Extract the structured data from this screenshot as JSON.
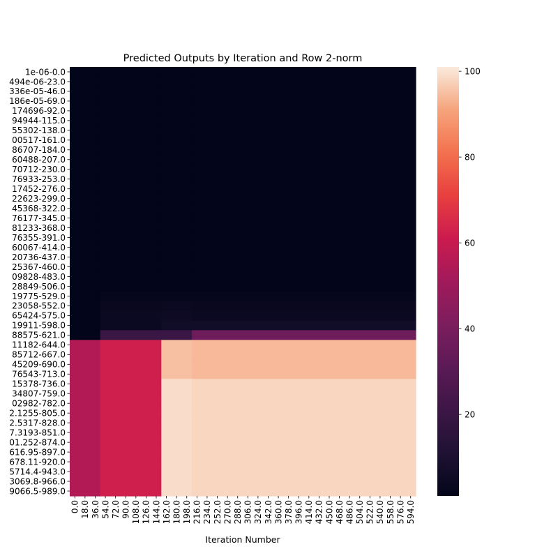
{
  "chart_data": {
    "type": "heatmap",
    "title": "Predicted Outputs by Iteration and Row 2-norm",
    "xlabel": "Iteration Number",
    "ylabel": "",
    "x_tick_labels": [
      "0.0",
      "18.0",
      "36.0",
      "54.0",
      "72.0",
      "90.0",
      "108.0",
      "126.0",
      "144.0",
      "162.0",
      "180.0",
      "198.0",
      "216.0",
      "234.0",
      "252.0",
      "270.0",
      "288.0",
      "306.0",
      "324.0",
      "342.0",
      "360.0",
      "378.0",
      "396.0",
      "414.0",
      "432.0",
      "450.0",
      "468.0",
      "486.0",
      "504.0",
      "522.0",
      "540.0",
      "558.0",
      "576.0",
      "594.0"
    ],
    "y_tick_labels": [
      "1e-06-0.0",
      "494e-06-23.0",
      "336e-05-46.0",
      "186e-05-69.0",
      "174696-92.0",
      "94944-115.0",
      "55302-138.0",
      "00517-161.0",
      "86707-184.0",
      "60488-207.0",
      "70712-230.0",
      "76933-253.0",
      "17452-276.0",
      "22623-299.0",
      "45368-322.0",
      "76177-345.0",
      "81233-368.0",
      "76355-391.0",
      "60067-414.0",
      "20736-437.0",
      "25367-460.0",
      "09828-483.0",
      "28849-506.0",
      "19775-529.0",
      "23058-552.0",
      "65424-575.0",
      "19911-598.0",
      "88575-621.0",
      "11182-644.0",
      "85712-667.0",
      "45209-690.0",
      "76543-713.0",
      "15378-736.0",
      "34807-759.0",
      "02982-782.0",
      "2.1255-805.0",
      "2.5317-828.0",
      "7.3193-851.0",
      "01.252-874.0",
      "616.95-897.0",
      "678.11-920.0",
      "5714.4-943.0",
      "3069.8-966.0",
      "9066.5-989.0"
    ],
    "column_segments": [
      {
        "iterations": "0.0-36.0",
        "columns": 3
      },
      {
        "iterations": "54.0-144.0",
        "columns": 6
      },
      {
        "iterations": "162.0-198.0",
        "columns": 3
      },
      {
        "iterations": "216.0-594.0",
        "columns": 22
      }
    ],
    "row_values": [
      [
        1,
        1,
        1,
        1
      ],
      [
        1,
        1,
        1,
        1
      ],
      [
        1,
        1,
        1,
        1
      ],
      [
        1,
        1,
        1,
        1
      ],
      [
        1,
        1,
        1,
        1
      ],
      [
        1,
        1,
        1,
        1
      ],
      [
        1,
        1,
        1,
        1
      ],
      [
        1,
        1,
        1,
        1
      ],
      [
        1,
        1,
        1,
        1
      ],
      [
        1,
        1,
        1,
        1
      ],
      [
        1,
        1,
        1,
        1
      ],
      [
        1,
        1,
        1,
        1
      ],
      [
        1,
        1,
        1,
        1
      ],
      [
        1,
        1,
        1,
        1
      ],
      [
        1,
        1,
        1,
        1
      ],
      [
        1,
        1,
        1,
        1
      ],
      [
        1,
        1,
        1,
        1
      ],
      [
        1,
        1,
        1,
        1
      ],
      [
        1,
        1,
        1,
        1
      ],
      [
        1,
        1,
        1,
        1
      ],
      [
        1,
        1,
        1,
        1
      ],
      [
        1,
        1,
        1,
        1
      ],
      [
        1,
        1,
        1,
        1
      ],
      [
        1,
        2,
        2,
        2
      ],
      [
        1,
        3,
        4,
        3
      ],
      [
        1,
        4,
        5,
        4
      ],
      [
        1,
        4,
        6,
        6
      ],
      [
        1,
        20,
        20,
        37
      ],
      [
        55,
        62,
        95,
        94
      ],
      [
        55,
        62,
        95,
        94
      ],
      [
        55,
        62,
        95,
        94
      ],
      [
        55,
        62,
        95,
        94
      ],
      [
        55,
        62,
        99,
        98
      ],
      [
        55,
        62,
        99,
        98
      ],
      [
        55,
        62,
        99,
        98
      ],
      [
        55,
        62,
        99,
        98
      ],
      [
        55,
        62,
        99,
        98
      ],
      [
        55,
        62,
        99,
        98
      ],
      [
        55,
        62,
        99,
        98
      ],
      [
        55,
        62,
        99,
        98
      ],
      [
        55,
        62,
        99,
        98
      ],
      [
        55,
        62,
        99,
        98
      ],
      [
        55,
        62,
        99,
        98
      ],
      [
        55,
        62,
        99,
        98
      ]
    ],
    "colorbar": {
      "colormap": "rocket",
      "range": [
        1,
        101
      ],
      "ticks": [
        "20",
        "40",
        "60",
        "80",
        "100"
      ]
    }
  }
}
